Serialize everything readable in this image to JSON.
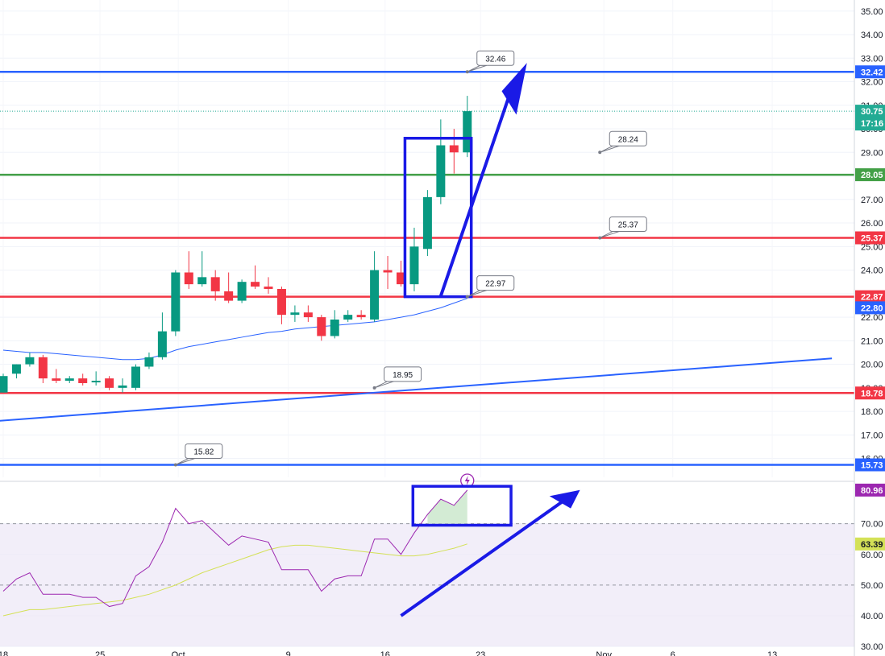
{
  "chart_data": [
    {
      "type": "candlestick",
      "title": "",
      "price_range": [
        15.2,
        35.3
      ],
      "x_ticks": [
        "18",
        "25",
        "Oct",
        "9",
        "16",
        "23",
        "Nov",
        "6",
        "13"
      ],
      "price_ticks": [
        "35.00",
        "34.00",
        "33.00",
        "32.00",
        "31.00",
        "30.00",
        "29.00",
        "28.00",
        "27.00",
        "26.00",
        "25.00",
        "24.00",
        "23.00",
        "22.00",
        "21.00",
        "20.00",
        "19.00",
        "18.00",
        "17.00",
        "16.00"
      ],
      "candles": [
        {
          "i": 0,
          "o": 18.8,
          "h": 19.6,
          "l": 18.8,
          "c": 19.5
        },
        {
          "i": 1,
          "o": 19.6,
          "h": 20.0,
          "l": 19.4,
          "c": 20.0
        },
        {
          "i": 2,
          "o": 20.0,
          "h": 20.5,
          "l": 19.9,
          "c": 20.3
        },
        {
          "i": 3,
          "o": 20.3,
          "h": 20.4,
          "l": 19.2,
          "c": 19.4
        },
        {
          "i": 4,
          "o": 19.4,
          "h": 19.8,
          "l": 19.2,
          "c": 19.3
        },
        {
          "i": 5,
          "o": 19.3,
          "h": 19.5,
          "l": 19.2,
          "c": 19.4
        },
        {
          "i": 6,
          "o": 19.4,
          "h": 19.6,
          "l": 19.1,
          "c": 19.2
        },
        {
          "i": 7,
          "o": 19.3,
          "h": 19.7,
          "l": 19.1,
          "c": 19.3
        },
        {
          "i": 8,
          "o": 19.4,
          "h": 19.5,
          "l": 18.9,
          "c": 19.0
        },
        {
          "i": 9,
          "o": 19.0,
          "h": 19.4,
          "l": 18.8,
          "c": 19.1
        },
        {
          "i": 10,
          "o": 19.0,
          "h": 20.0,
          "l": 18.9,
          "c": 19.9
        },
        {
          "i": 11,
          "o": 19.9,
          "h": 20.5,
          "l": 19.8,
          "c": 20.3
        },
        {
          "i": 12,
          "o": 20.3,
          "h": 22.2,
          "l": 20.2,
          "c": 21.4
        },
        {
          "i": 13,
          "o": 21.4,
          "h": 24.0,
          "l": 21.2,
          "c": 23.9
        },
        {
          "i": 14,
          "o": 23.9,
          "h": 24.8,
          "l": 23.2,
          "c": 23.4
        },
        {
          "i": 15,
          "o": 23.4,
          "h": 24.8,
          "l": 23.3,
          "c": 23.7
        },
        {
          "i": 16,
          "o": 23.7,
          "h": 24.0,
          "l": 22.7,
          "c": 23.1
        },
        {
          "i": 17,
          "o": 23.1,
          "h": 23.9,
          "l": 22.6,
          "c": 22.7
        },
        {
          "i": 18,
          "o": 22.7,
          "h": 23.6,
          "l": 22.6,
          "c": 23.5
        },
        {
          "i": 19,
          "o": 23.5,
          "h": 24.2,
          "l": 23.2,
          "c": 23.3
        },
        {
          "i": 20,
          "o": 23.3,
          "h": 23.7,
          "l": 23.0,
          "c": 23.2
        },
        {
          "i": 21,
          "o": 23.2,
          "h": 23.3,
          "l": 21.7,
          "c": 22.1
        },
        {
          "i": 22,
          "o": 22.1,
          "h": 22.5,
          "l": 21.8,
          "c": 22.2
        },
        {
          "i": 23,
          "o": 22.2,
          "h": 22.5,
          "l": 21.8,
          "c": 22.0
        },
        {
          "i": 24,
          "o": 22.0,
          "h": 22.1,
          "l": 21.0,
          "c": 21.2
        },
        {
          "i": 25,
          "o": 21.2,
          "h": 22.3,
          "l": 21.1,
          "c": 21.9
        },
        {
          "i": 26,
          "o": 21.9,
          "h": 22.3,
          "l": 21.8,
          "c": 22.1
        },
        {
          "i": 27,
          "o": 22.1,
          "h": 22.3,
          "l": 21.9,
          "c": 22.0
        },
        {
          "i": 28,
          "o": 21.9,
          "h": 24.8,
          "l": 21.8,
          "c": 24.0
        },
        {
          "i": 29,
          "o": 24.0,
          "h": 24.6,
          "l": 23.2,
          "c": 23.9
        },
        {
          "i": 30,
          "o": 23.9,
          "h": 24.4,
          "l": 23.3,
          "c": 23.4
        },
        {
          "i": 31,
          "o": 23.4,
          "h": 25.8,
          "l": 23.1,
          "c": 25.0
        },
        {
          "i": 32,
          "o": 24.9,
          "h": 27.4,
          "l": 24.6,
          "c": 27.1
        },
        {
          "i": 33,
          "o": 27.1,
          "h": 30.4,
          "l": 26.8,
          "c": 29.3
        },
        {
          "i": 34,
          "o": 29.3,
          "h": 30.0,
          "l": 28.1,
          "c": 29.0
        },
        {
          "i": 35,
          "o": 29.0,
          "h": 31.4,
          "l": 28.8,
          "c": 30.75
        }
      ],
      "sma": [
        20.6,
        20.55,
        20.5,
        20.5,
        20.45,
        20.4,
        20.35,
        20.3,
        20.25,
        20.2,
        20.2,
        20.25,
        20.4,
        20.6,
        20.75,
        20.85,
        20.95,
        21.05,
        21.15,
        21.25,
        21.35,
        21.4,
        21.5,
        21.55,
        21.6,
        21.65,
        21.7,
        21.75,
        21.8,
        21.9,
        22.0,
        22.1,
        22.25,
        22.4,
        22.6,
        22.8
      ],
      "trendline": {
        "from": {
          "i": -0.3,
          "price": 17.6
        },
        "to": {
          "i": 62.5,
          "price": 20.25
        }
      },
      "horizontal_levels": [
        {
          "name": "blue-resistance",
          "price": 32.42,
          "label": "32.42",
          "color": "#2962ff"
        },
        {
          "name": "green-level",
          "price": 28.05,
          "label": "28.05",
          "color": "#43a047"
        },
        {
          "name": "red-level-upper",
          "price": 25.37,
          "label": "25.37",
          "color": "#f23645"
        },
        {
          "name": "red-level-middle",
          "price": 22.87,
          "label": "22.87",
          "color": "#f23645"
        },
        {
          "name": "red-level-lower",
          "price": 18.78,
          "label": "18.78",
          "color": "#f23645"
        },
        {
          "name": "blue-support",
          "price": 15.73,
          "label": "15.73",
          "color": "#2962ff"
        }
      ],
      "last_price": {
        "price": 30.75,
        "label": "30.75",
        "countdown": "17:16",
        "color": "#22ab94"
      },
      "sma_badge": {
        "label": "22.80",
        "color": "#2962ff"
      },
      "callouts": [
        {
          "label": "32.46",
          "anchor_i": 35,
          "anchor_price": 32.42
        },
        {
          "label": "28.24",
          "anchor_i": 45,
          "anchor_price": 29.0
        },
        {
          "label": "25.37",
          "anchor_i": 45,
          "anchor_price": 25.37
        },
        {
          "label": "22.97",
          "anchor_i": 35,
          "anchor_price": 22.87
        },
        {
          "label": "18.95",
          "anchor_i": 28,
          "anchor_price": 19.0
        },
        {
          "label": "15.82",
          "anchor_i": 13,
          "anchor_price": 15.73
        }
      ],
      "colors": {
        "up": "#089981",
        "down": "#f23645",
        "sma": "#2962ff",
        "annotation": "#1a1ae6"
      }
    },
    {
      "type": "line",
      "title": "",
      "y_range": [
        29.5,
        82.5
      ],
      "y_ticks": [
        "70.00",
        "60.00",
        "50.00",
        "40.00",
        "30.00"
      ],
      "band": [
        30,
        70
      ],
      "rsi": [
        48,
        52,
        54,
        47,
        47,
        47,
        46,
        46,
        43,
        44,
        53,
        56,
        64,
        75,
        70,
        71,
        67,
        63,
        66,
        65,
        64,
        55,
        55,
        55,
        48,
        52,
        53,
        53,
        65,
        65,
        60,
        67,
        73,
        78,
        76,
        80.96
      ],
      "rsi_ma": [
        40,
        41,
        42,
        42,
        42.5,
        43,
        43.5,
        44,
        44.5,
        45,
        46,
        47,
        48.5,
        50,
        52,
        54,
        55.5,
        57,
        58.5,
        60,
        61.5,
        62.5,
        63,
        63,
        62.5,
        62,
        61.5,
        61,
        60.5,
        60,
        59.5,
        59.5,
        60,
        61,
        62,
        63.39
      ],
      "rsi_badge": {
        "label": "80.96",
        "color": "#9c27b0"
      },
      "ma_badge": {
        "label": "63.39",
        "color": "#d4e157"
      },
      "colors": {
        "rsi": "#9c27b0",
        "ma": "#d4e157",
        "band": "#ede7f6"
      }
    }
  ]
}
